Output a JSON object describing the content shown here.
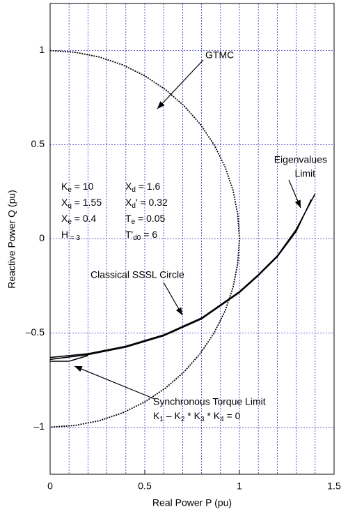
{
  "chart_data": {
    "type": "line",
    "xlabel": "Real Power P (pu)",
    "ylabel": "Reactive Power Q (pu)",
    "xlim": [
      0,
      1.5
    ],
    "ylim": [
      -1.25,
      1.25
    ],
    "xticks": [
      0,
      0.5,
      1,
      1.5
    ],
    "yticks": [
      {
        "value": -1,
        "label": "–1"
      },
      {
        "value": -0.5,
        "label": "–0.5"
      },
      0,
      0.5,
      1
    ],
    "grid": true,
    "series": [
      {
        "color": "#000000",
        "dash": true,
        "x": [
          0,
          0.131,
          0.259,
          0.383,
          0.5,
          0.609,
          0.707,
          0.793,
          0.866,
          0.924,
          0.966,
          0.991,
          1,
          0.991,
          0.966,
          0.924,
          0.866,
          0.793,
          0.707,
          0.609,
          0.5,
          0.383,
          0.259,
          0.131,
          0
        ],
        "values": [
          1,
          0.991,
          0.966,
          0.924,
          0.866,
          0.793,
          0.707,
          0.609,
          0.5,
          0.383,
          0.259,
          0.131,
          0,
          -0.131,
          -0.259,
          -0.383,
          -0.5,
          -0.609,
          -0.707,
          -0.793,
          -0.866,
          -0.924,
          -0.966,
          -0.991,
          -1
        ]
      },
      {
        "color": "#000000",
        "x": [
          0,
          0.2,
          0.4,
          0.6,
          0.8,
          1.0,
          1.1,
          1.2,
          1.3,
          1.4
        ],
        "values": [
          -0.63,
          -0.61,
          -0.57,
          -0.51,
          -0.42,
          -0.28,
          -0.19,
          -0.09,
          0.05,
          0.24
        ]
      },
      {
        "color": "#000000",
        "x": [
          0,
          0.2,
          0.4,
          0.6,
          0.8,
          1.0,
          1.1,
          1.2,
          1.3,
          1.38
        ],
        "values": [
          -0.64,
          -0.615,
          -0.575,
          -0.515,
          -0.425,
          -0.285,
          -0.195,
          -0.095,
          0.04,
          0.21
        ]
      },
      {
        "color": "#000000",
        "x": [
          0,
          0.1,
          0.2
        ],
        "values": [
          -0.65,
          -0.65,
          -0.62
        ]
      }
    ],
    "annotations": [
      "GTMC",
      "Classical SSSL Circle",
      "Eigenvalues",
      "Limit",
      "Synchronous Torque Limit"
    ],
    "equation": [
      "K",
      "1",
      " – K",
      "2",
      " * K",
      "3",
      " * K",
      "4",
      " = 0"
    ],
    "parameters": [
      [
        "K",
        "e",
        " = 10"
      ],
      [
        "X",
        "d",
        " = 1.6"
      ],
      [
        "X",
        "q",
        " = 1.55"
      ],
      [
        "X",
        "d",
        "' = 0.32"
      ],
      [
        "X",
        "e",
        " = 0.4"
      ],
      [
        "T",
        "e",
        " = 0.05"
      ],
      [
        "H",
        "",
        "",
        " = 3"
      ],
      [
        "T'",
        "d0",
        " = 6"
      ]
    ]
  }
}
